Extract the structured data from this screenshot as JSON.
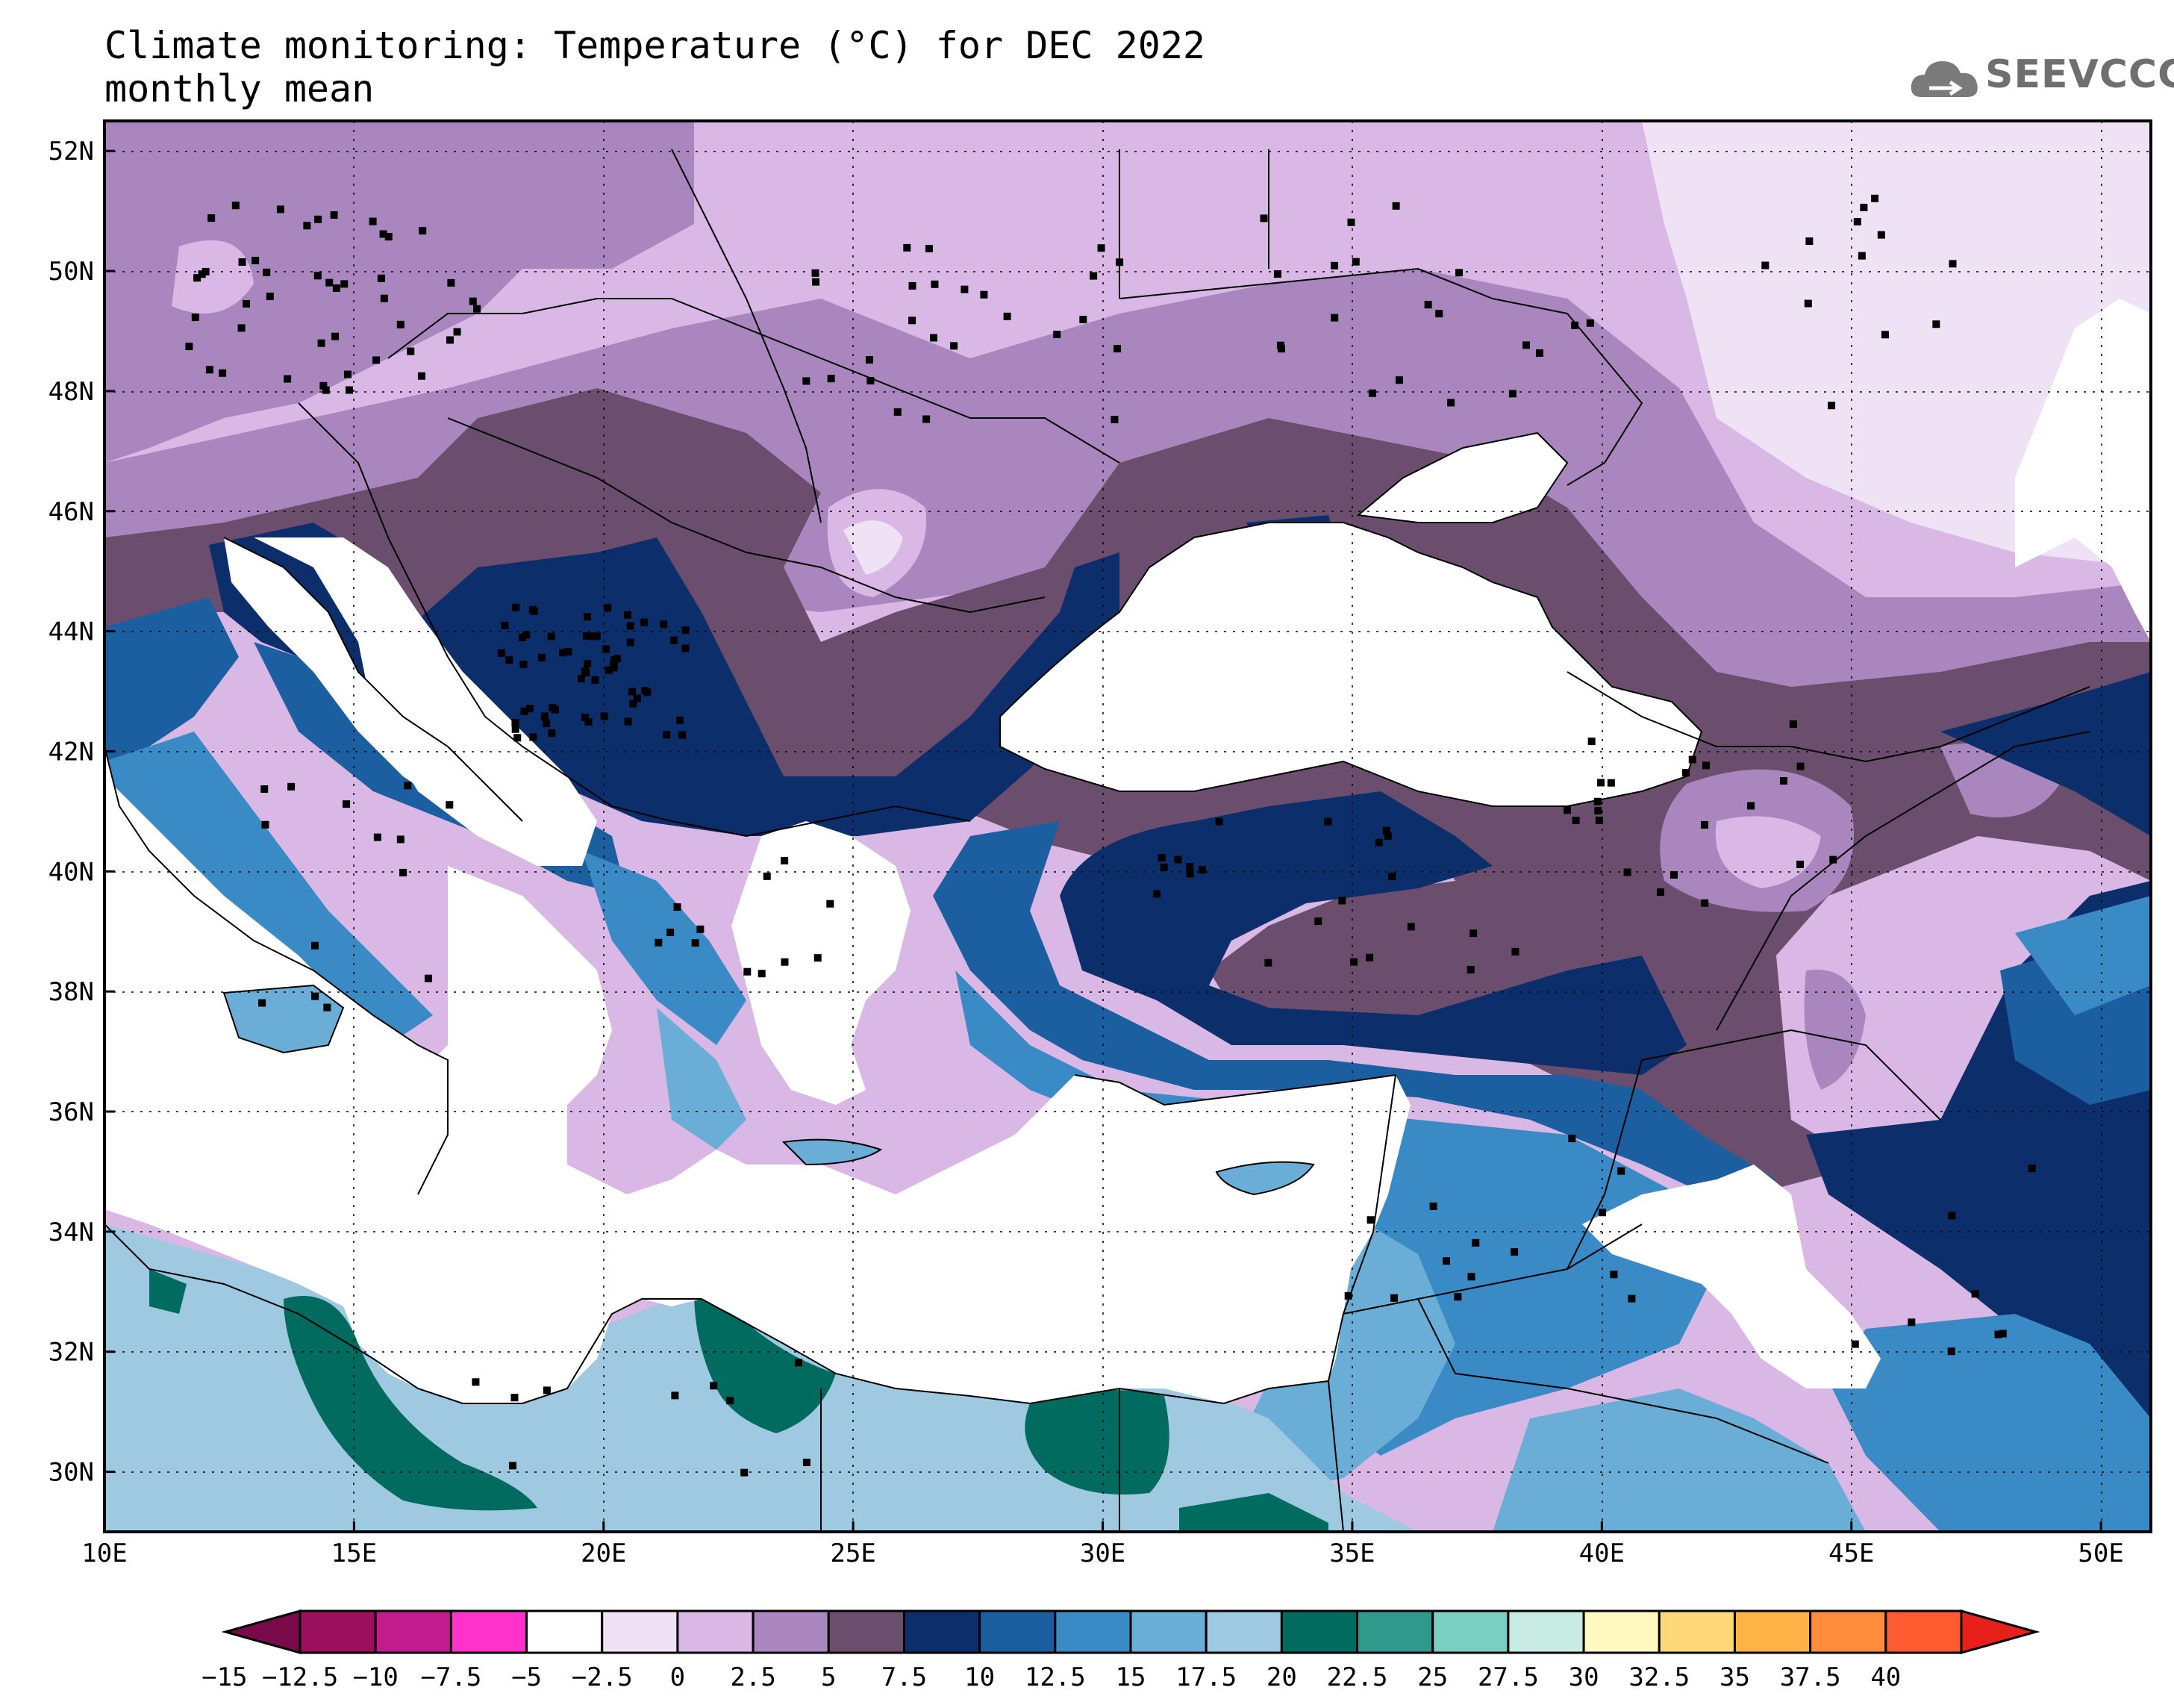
{
  "title": {
    "line1": "Climate monitoring: Temperature (°C) for DEC 2022",
    "line2": "monthly mean"
  },
  "logo": {
    "text": "SEEVCCC",
    "icon": "cloud-icon",
    "color": "#6f6f6f"
  },
  "map": {
    "lon_range": [
      10,
      51
    ],
    "lat_range": [
      29,
      52.5
    ],
    "lon_ticks": [
      "10E",
      "15E",
      "20E",
      "25E",
      "30E",
      "35E",
      "40E",
      "45E",
      "50E"
    ],
    "lat_ticks": [
      "30N",
      "32N",
      "34N",
      "36N",
      "38N",
      "40N",
      "42N",
      "44N",
      "46N",
      "48N",
      "50N",
      "52N"
    ]
  },
  "colorbar": {
    "labels": [
      "−15",
      "−12.5",
      "−10",
      "−7.5",
      "−5",
      "−2.5",
      "0",
      "2.5",
      "5",
      "7.5",
      "10",
      "12.5",
      "15",
      "17.5",
      "20",
      "22.5",
      "25",
      "27.5",
      "30",
      "32.5",
      "35",
      "37.5",
      "40"
    ],
    "colors": [
      "#9b0f5f",
      "#c21c8f",
      "#ff33cc",
      "#ffffff",
      "#f0e2f5",
      "#d9b8e6",
      "#a987be",
      "#6b4e6e",
      "#0c2e6b",
      "#1c5fa0",
      "#3a8ac6",
      "#6aadd6",
      "#9ec9e1",
      "#006b5e",
      "#2f9a8c",
      "#7bcfc0",
      "#c8ebe3",
      "#fff8c0",
      "#ffd87a",
      "#ffb347",
      "#ff8c3a",
      "#ff5a30"
    ],
    "low_arrow_color": "#7a0a4a",
    "high_arrow_color": "#e8201c"
  }
}
